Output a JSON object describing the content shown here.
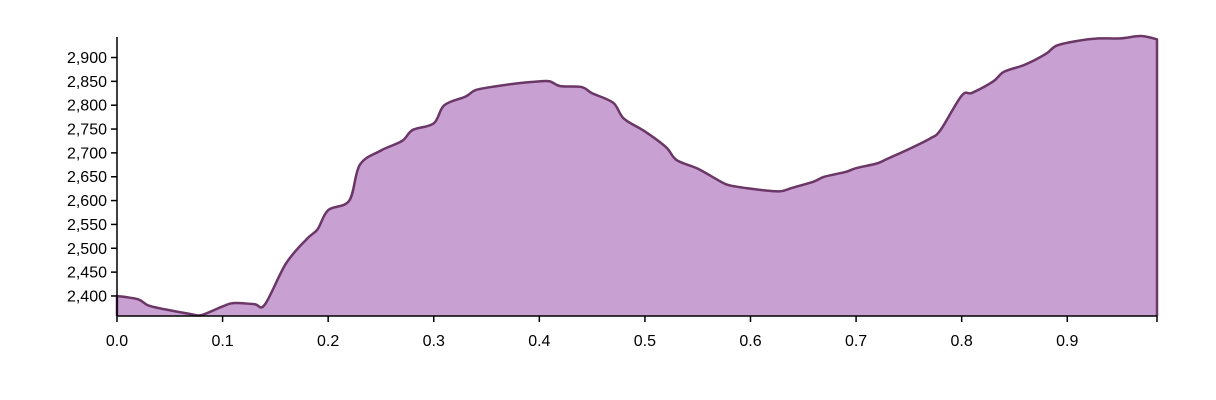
{
  "chart_data": {
    "type": "area",
    "title": "",
    "xlabel": "",
    "ylabel": "",
    "xlim": [
      0,
      0.985
    ],
    "ylim": [
      2358,
      2943
    ],
    "grid": false,
    "x_ticks": [
      0.0,
      0.1,
      0.2,
      0.3,
      0.4,
      0.5,
      0.6,
      0.7,
      0.8,
      0.9
    ],
    "x_tick_labels": [
      "0.0",
      "0.1",
      "0.2",
      "0.3",
      "0.4",
      "0.5",
      "0.6",
      "0.7",
      "0.8",
      "0.9"
    ],
    "y_ticks": [
      2400,
      2450,
      2500,
      2550,
      2600,
      2650,
      2700,
      2750,
      2800,
      2850,
      2900
    ],
    "y_tick_labels": [
      "2,400",
      "2,450",
      "2,500",
      "2,550",
      "2,600",
      "2,650",
      "2,700",
      "2,750",
      "2,800",
      "2,850",
      "2,900"
    ],
    "colors": {
      "fill": "#c9a0d2",
      "stroke": "#6a3766"
    },
    "series": [
      {
        "x": [
          0.0,
          0.02,
          0.03,
          0.05,
          0.07,
          0.08,
          0.1,
          0.11,
          0.13,
          0.14,
          0.16,
          0.18,
          0.19,
          0.2,
          0.22,
          0.23,
          0.25,
          0.27,
          0.28,
          0.3,
          0.31,
          0.33,
          0.34,
          0.36,
          0.38,
          0.4,
          0.41,
          0.42,
          0.44,
          0.45,
          0.47,
          0.48,
          0.5,
          0.52,
          0.53,
          0.55,
          0.57,
          0.58,
          0.6,
          0.62,
          0.63,
          0.64,
          0.66,
          0.67,
          0.69,
          0.7,
          0.72,
          0.73,
          0.75,
          0.77,
          0.78,
          0.8,
          0.81,
          0.83,
          0.84,
          0.86,
          0.88,
          0.89,
          0.91,
          0.93,
          0.95,
          0.97,
          0.985
        ],
        "values": [
          2400,
          2393,
          2380,
          2370,
          2362,
          2360,
          2378,
          2385,
          2383,
          2382,
          2468,
          2520,
          2540,
          2580,
          2600,
          2675,
          2705,
          2725,
          2748,
          2762,
          2800,
          2818,
          2832,
          2840,
          2846,
          2850,
          2850,
          2840,
          2838,
          2825,
          2805,
          2772,
          2745,
          2712,
          2685,
          2667,
          2642,
          2632,
          2625,
          2620,
          2620,
          2627,
          2640,
          2650,
          2660,
          2668,
          2678,
          2688,
          2708,
          2730,
          2748,
          2820,
          2826,
          2850,
          2870,
          2885,
          2908,
          2925,
          2935,
          2940,
          2940,
          2945,
          2938
        ]
      }
    ]
  }
}
